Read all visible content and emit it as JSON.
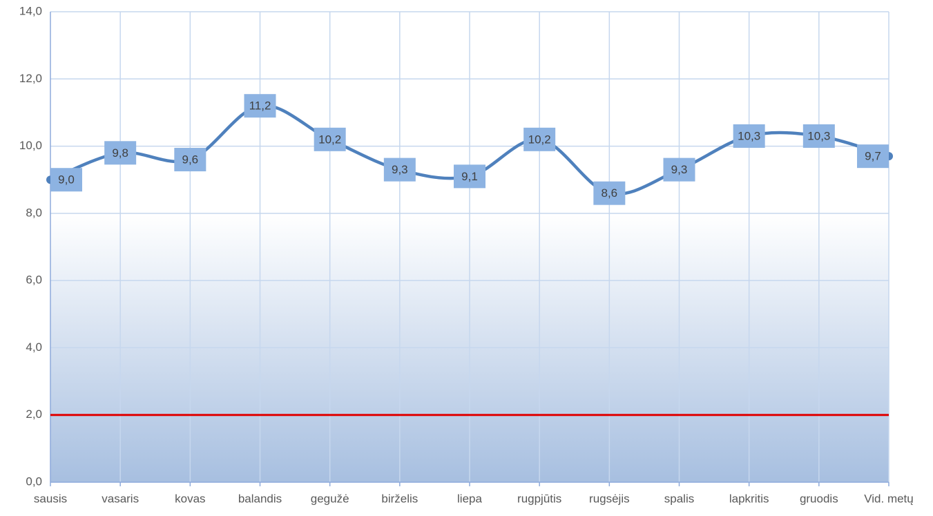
{
  "chart_data": {
    "type": "line",
    "categories": [
      "sausis",
      "vasaris",
      "kovas",
      "balandis",
      "gegužė",
      "birželis",
      "liepa",
      "rugpjūtis",
      "rugsėjis",
      "spalis",
      "lapkritis",
      "gruodis",
      "Vid. metų"
    ],
    "series": [
      {
        "color": "#4f81bd",
        "values": [
          9.0,
          9.8,
          9.6,
          11.2,
          10.2,
          9.3,
          9.1,
          10.2,
          8.6,
          9.3,
          10.3,
          10.3,
          9.7
        ],
        "value_labels": [
          "9,0",
          "9,8",
          "9,6",
          "11,2",
          "10,2",
          "9,3",
          "9,1",
          "10,2",
          "8,6",
          "9,3",
          "10,3",
          "10,3",
          "9,7"
        ]
      }
    ],
    "reference_line": {
      "value": 2,
      "color": "#e00000"
    },
    "ylim": [
      0,
      14
    ],
    "yticks": [
      {
        "value": 0,
        "label": "0,0"
      },
      {
        "value": 2,
        "label": "2,0"
      },
      {
        "value": 4,
        "label": "4,0"
      },
      {
        "value": 6,
        "label": "6,0"
      },
      {
        "value": 8,
        "label": "8,0"
      },
      {
        "value": 10,
        "label": "10,0"
      },
      {
        "value": 12,
        "label": "12,0"
      },
      {
        "value": 14,
        "label": "14,0"
      }
    ],
    "grid": true,
    "label_color": "#8db3e2"
  }
}
